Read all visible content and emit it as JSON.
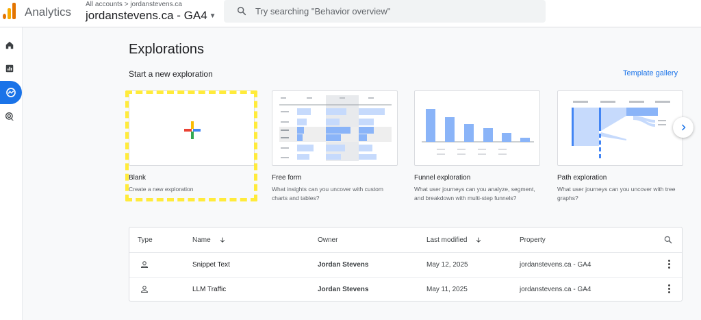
{
  "header": {
    "app_name": "Analytics",
    "breadcrumb": "All accounts > jordanstevens.ca",
    "property": "jordanstevens.ca - GA4",
    "search_placeholder": "Try searching \"Behavior overview\""
  },
  "nav": {
    "items": [
      "home-icon",
      "reports-icon",
      "explore-icon",
      "advertising-icon"
    ],
    "active": "explore-icon"
  },
  "main": {
    "title": "Explorations",
    "section_label": "Start a new exploration",
    "template_gallery": "Template gallery",
    "cards": [
      {
        "title": "Blank",
        "desc": "Create a new exploration"
      },
      {
        "title": "Free form",
        "desc": "What insights can you uncover with custom charts and tables?"
      },
      {
        "title": "Funnel exploration",
        "desc": "What user journeys can you analyze, segment, and breakdown with multi-step funnels?"
      },
      {
        "title": "Path exploration",
        "desc": "What user journeys can you uncover with tree graphs?"
      }
    ]
  },
  "table": {
    "columns": {
      "type": "Type",
      "name": "Name",
      "owner": "Owner",
      "last_modified": "Last modified",
      "property": "Property"
    },
    "rows": [
      {
        "name": "Snippet Text",
        "owner": "Jordan Stevens",
        "modified": "May 12, 2025",
        "property": "jordanstevens.ca - GA4"
      },
      {
        "name": "LLM Traffic",
        "owner": "Jordan Stevens",
        "modified": "May 11, 2025",
        "property": "jordanstevens.ca - GA4"
      }
    ]
  },
  "colors": {
    "accent": "#1a73e8",
    "highlight": "#ffeb3b",
    "thumb_blue": "#8ab4f8"
  }
}
